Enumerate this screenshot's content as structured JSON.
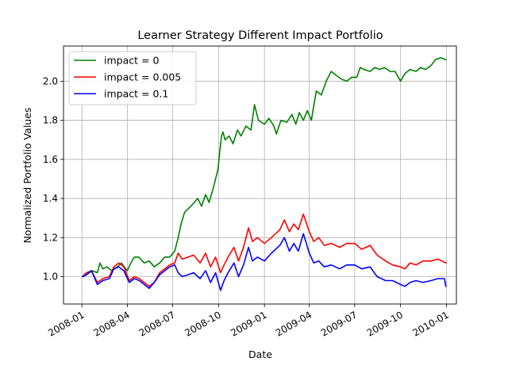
{
  "chart_data": {
    "type": "line",
    "title": "Learner Strategy Different Impact Portfolio",
    "xlabel": "Date",
    "ylabel": "Normalized Portfolio Values",
    "xlim": [
      "2007-11-25",
      "2010-01-21"
    ],
    "ylim": [
      0.86,
      2.18
    ],
    "x_ticks": [
      "2008-01",
      "2008-04",
      "2008-07",
      "2008-10",
      "2009-01",
      "2009-04",
      "2009-07",
      "2009-10",
      "2010-01"
    ],
    "y_ticks": [
      "1.0",
      "1.2",
      "1.4",
      "1.6",
      "1.8",
      "2.0"
    ],
    "grid": true,
    "legend_position": "top-left",
    "series": [
      {
        "name": "impact = 0",
        "color": "#008000",
        "points": [
          [
            "2008-01-02",
            1.0
          ],
          [
            "2008-01-10",
            1.01
          ],
          [
            "2008-01-22",
            1.03
          ],
          [
            "2008-02-01",
            1.02
          ],
          [
            "2008-02-06",
            1.07
          ],
          [
            "2008-02-12",
            1.04
          ],
          [
            "2008-02-20",
            1.05
          ],
          [
            "2008-03-01",
            1.03
          ],
          [
            "2008-03-12",
            1.05
          ],
          [
            "2008-03-20",
            1.07
          ],
          [
            "2008-04-01",
            1.03
          ],
          [
            "2008-04-08",
            1.07
          ],
          [
            "2008-04-15",
            1.1
          ],
          [
            "2008-04-24",
            1.1
          ],
          [
            "2008-05-05",
            1.07
          ],
          [
            "2008-05-15",
            1.08
          ],
          [
            "2008-05-25",
            1.05
          ],
          [
            "2008-06-05",
            1.07
          ],
          [
            "2008-06-15",
            1.1
          ],
          [
            "2008-06-25",
            1.1
          ],
          [
            "2008-07-05",
            1.13
          ],
          [
            "2008-07-12",
            1.2
          ],
          [
            "2008-07-18",
            1.27
          ],
          [
            "2008-07-25",
            1.33
          ],
          [
            "2008-08-02",
            1.35
          ],
          [
            "2008-08-10",
            1.37
          ],
          [
            "2008-08-20",
            1.4
          ],
          [
            "2008-08-28",
            1.36
          ],
          [
            "2008-09-05",
            1.42
          ],
          [
            "2008-09-12",
            1.38
          ],
          [
            "2008-09-20",
            1.45
          ],
          [
            "2008-09-25",
            1.5
          ],
          [
            "2008-09-30",
            1.55
          ],
          [
            "2008-10-03",
            1.63
          ],
          [
            "2008-10-07",
            1.72
          ],
          [
            "2008-10-10",
            1.74
          ],
          [
            "2008-10-14",
            1.7
          ],
          [
            "2008-10-22",
            1.72
          ],
          [
            "2008-10-30",
            1.68
          ],
          [
            "2008-11-08",
            1.75
          ],
          [
            "2008-11-15",
            1.72
          ],
          [
            "2008-11-25",
            1.77
          ],
          [
            "2008-12-05",
            1.75
          ],
          [
            "2008-12-12",
            1.88
          ],
          [
            "2008-12-20",
            1.8
          ],
          [
            "2009-01-01",
            1.78
          ],
          [
            "2009-01-10",
            1.81
          ],
          [
            "2009-01-20",
            1.77
          ],
          [
            "2009-01-25",
            1.73
          ],
          [
            "2009-02-03",
            1.8
          ],
          [
            "2009-02-15",
            1.79
          ],
          [
            "2009-02-25",
            1.83
          ],
          [
            "2009-03-05",
            1.78
          ],
          [
            "2009-03-12",
            1.84
          ],
          [
            "2009-03-20",
            1.8
          ],
          [
            "2009-03-28",
            1.85
          ],
          [
            "2009-04-05",
            1.8
          ],
          [
            "2009-04-15",
            1.95
          ],
          [
            "2009-04-25",
            1.93
          ],
          [
            "2009-05-05",
            2.0
          ],
          [
            "2009-05-15",
            2.05
          ],
          [
            "2009-05-25",
            2.03
          ],
          [
            "2009-06-05",
            2.01
          ],
          [
            "2009-06-15",
            2.0
          ],
          [
            "2009-06-25",
            2.02
          ],
          [
            "2009-07-05",
            2.02
          ],
          [
            "2009-07-12",
            2.07
          ],
          [
            "2009-07-20",
            2.06
          ],
          [
            "2009-08-01",
            2.05
          ],
          [
            "2009-08-10",
            2.07
          ],
          [
            "2009-08-20",
            2.06
          ],
          [
            "2009-08-30",
            2.07
          ],
          [
            "2009-09-10",
            2.05
          ],
          [
            "2009-09-20",
            2.05
          ],
          [
            "2009-10-01",
            2.0
          ],
          [
            "2009-10-10",
            2.04
          ],
          [
            "2009-10-20",
            2.06
          ],
          [
            "2009-11-01",
            2.05
          ],
          [
            "2009-11-10",
            2.07
          ],
          [
            "2009-11-20",
            2.06
          ],
          [
            "2009-12-01",
            2.08
          ],
          [
            "2009-12-10",
            2.11
          ],
          [
            "2009-12-20",
            2.12
          ],
          [
            "2009-12-31",
            2.11
          ]
        ]
      },
      {
        "name": "impact = 0.005",
        "color": "#ff0000",
        "points": [
          [
            "2008-01-02",
            1.0
          ],
          [
            "2008-01-10",
            1.02
          ],
          [
            "2008-01-20",
            1.03
          ],
          [
            "2008-02-01",
            0.97
          ],
          [
            "2008-02-12",
            0.99
          ],
          [
            "2008-02-25",
            1.0
          ],
          [
            "2008-03-05",
            1.05
          ],
          [
            "2008-03-15",
            1.07
          ],
          [
            "2008-03-25",
            1.05
          ],
          [
            "2008-04-05",
            0.98
          ],
          [
            "2008-04-15",
            1.0
          ],
          [
            "2008-04-25",
            0.99
          ],
          [
            "2008-05-05",
            0.97
          ],
          [
            "2008-05-15",
            0.95
          ],
          [
            "2008-05-25",
            0.97
          ],
          [
            "2008-06-05",
            1.02
          ],
          [
            "2008-06-15",
            1.04
          ],
          [
            "2008-06-25",
            1.06
          ],
          [
            "2008-07-05",
            1.07
          ],
          [
            "2008-07-12",
            1.12
          ],
          [
            "2008-07-20",
            1.09
          ],
          [
            "2008-08-01",
            1.1
          ],
          [
            "2008-08-12",
            1.11
          ],
          [
            "2008-08-25",
            1.07
          ],
          [
            "2008-09-05",
            1.12
          ],
          [
            "2008-09-15",
            1.05
          ],
          [
            "2008-09-25",
            1.1
          ],
          [
            "2008-10-05",
            1.02
          ],
          [
            "2008-10-12",
            1.06
          ],
          [
            "2008-10-20",
            1.1
          ],
          [
            "2008-11-01",
            1.15
          ],
          [
            "2008-11-10",
            1.08
          ],
          [
            "2008-11-20",
            1.15
          ],
          [
            "2008-11-30",
            1.25
          ],
          [
            "2008-12-08",
            1.18
          ],
          [
            "2008-12-18",
            1.2
          ],
          [
            "2009-01-01",
            1.17
          ],
          [
            "2009-01-15",
            1.2
          ],
          [
            "2009-02-01",
            1.24
          ],
          [
            "2009-02-10",
            1.29
          ],
          [
            "2009-02-20",
            1.23
          ],
          [
            "2009-03-01",
            1.27
          ],
          [
            "2009-03-10",
            1.24
          ],
          [
            "2009-03-20",
            1.32
          ],
          [
            "2009-04-01",
            1.23
          ],
          [
            "2009-04-10",
            1.18
          ],
          [
            "2009-04-20",
            1.2
          ],
          [
            "2009-05-01",
            1.16
          ],
          [
            "2009-05-15",
            1.17
          ],
          [
            "2009-06-01",
            1.15
          ],
          [
            "2009-06-15",
            1.17
          ],
          [
            "2009-07-01",
            1.17
          ],
          [
            "2009-07-15",
            1.14
          ],
          [
            "2009-08-01",
            1.16
          ],
          [
            "2009-08-15",
            1.11
          ],
          [
            "2009-09-01",
            1.08
          ],
          [
            "2009-09-15",
            1.06
          ],
          [
            "2009-10-01",
            1.05
          ],
          [
            "2009-10-10",
            1.04
          ],
          [
            "2009-10-20",
            1.07
          ],
          [
            "2009-11-01",
            1.06
          ],
          [
            "2009-11-15",
            1.08
          ],
          [
            "2009-12-01",
            1.08
          ],
          [
            "2009-12-15",
            1.09
          ],
          [
            "2009-12-31",
            1.07
          ]
        ]
      },
      {
        "name": "impact = 0.1",
        "color": "#0000ff",
        "points": [
          [
            "2008-01-02",
            1.0
          ],
          [
            "2008-01-10",
            1.01
          ],
          [
            "2008-01-20",
            1.03
          ],
          [
            "2008-02-01",
            0.96
          ],
          [
            "2008-02-12",
            0.98
          ],
          [
            "2008-02-25",
            0.99
          ],
          [
            "2008-03-05",
            1.04
          ],
          [
            "2008-03-15",
            1.05
          ],
          [
            "2008-03-25",
            1.03
          ],
          [
            "2008-04-05",
            0.97
          ],
          [
            "2008-04-15",
            0.99
          ],
          [
            "2008-04-25",
            0.98
          ],
          [
            "2008-05-05",
            0.96
          ],
          [
            "2008-05-15",
            0.94
          ],
          [
            "2008-05-25",
            0.97
          ],
          [
            "2008-06-05",
            1.01
          ],
          [
            "2008-06-15",
            1.03
          ],
          [
            "2008-06-25",
            1.05
          ],
          [
            "2008-07-05",
            1.06
          ],
          [
            "2008-07-12",
            1.02
          ],
          [
            "2008-07-20",
            1.0
          ],
          [
            "2008-08-01",
            1.01
          ],
          [
            "2008-08-12",
            1.02
          ],
          [
            "2008-08-25",
            0.99
          ],
          [
            "2008-09-05",
            1.03
          ],
          [
            "2008-09-15",
            0.97
          ],
          [
            "2008-09-25",
            1.02
          ],
          [
            "2008-10-05",
            0.93
          ],
          [
            "2008-10-12",
            0.98
          ],
          [
            "2008-10-20",
            1.02
          ],
          [
            "2008-11-01",
            1.07
          ],
          [
            "2008-11-10",
            1.0
          ],
          [
            "2008-11-20",
            1.06
          ],
          [
            "2008-11-30",
            1.15
          ],
          [
            "2008-12-08",
            1.08
          ],
          [
            "2008-12-18",
            1.1
          ],
          [
            "2009-01-01",
            1.08
          ],
          [
            "2009-01-15",
            1.12
          ],
          [
            "2009-02-01",
            1.16
          ],
          [
            "2009-02-10",
            1.2
          ],
          [
            "2009-02-20",
            1.13
          ],
          [
            "2009-03-01",
            1.17
          ],
          [
            "2009-03-10",
            1.13
          ],
          [
            "2009-03-20",
            1.22
          ],
          [
            "2009-04-01",
            1.12
          ],
          [
            "2009-04-10",
            1.07
          ],
          [
            "2009-04-20",
            1.08
          ],
          [
            "2009-05-01",
            1.05
          ],
          [
            "2009-05-15",
            1.06
          ],
          [
            "2009-06-01",
            1.04
          ],
          [
            "2009-06-15",
            1.06
          ],
          [
            "2009-07-01",
            1.06
          ],
          [
            "2009-07-15",
            1.04
          ],
          [
            "2009-08-01",
            1.05
          ],
          [
            "2009-08-15",
            1.0
          ],
          [
            "2009-09-01",
            0.98
          ],
          [
            "2009-09-15",
            0.98
          ],
          [
            "2009-10-01",
            0.96
          ],
          [
            "2009-10-10",
            0.95
          ],
          [
            "2009-10-20",
            0.97
          ],
          [
            "2009-11-01",
            0.98
          ],
          [
            "2009-11-15",
            0.97
          ],
          [
            "2009-12-01",
            0.98
          ],
          [
            "2009-12-15",
            0.99
          ],
          [
            "2009-12-28",
            0.99
          ],
          [
            "2009-12-31",
            0.95
          ]
        ]
      }
    ]
  }
}
